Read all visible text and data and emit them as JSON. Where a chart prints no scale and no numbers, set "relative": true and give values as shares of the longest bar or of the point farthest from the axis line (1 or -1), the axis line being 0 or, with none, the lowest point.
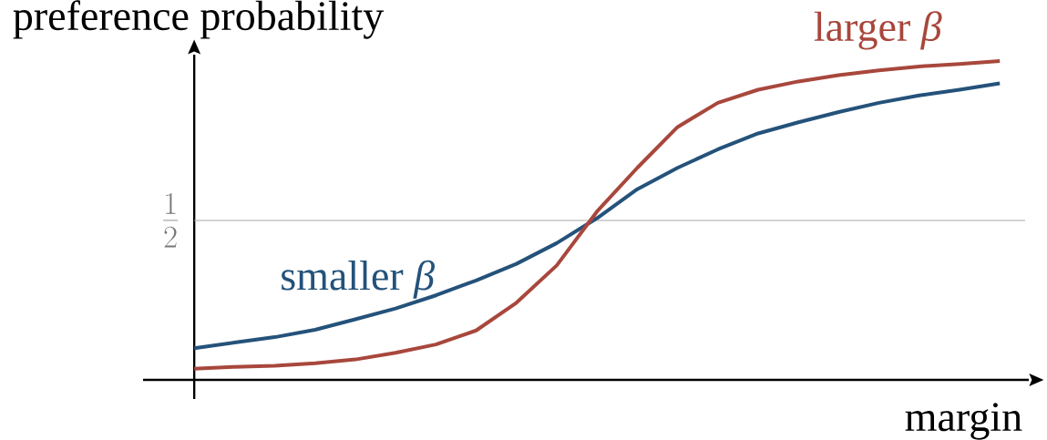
{
  "chart_data": {
    "type": "line",
    "relative": true,
    "xlabel": "margin",
    "ylabel": "preference probability",
    "categories": [
      null,
      null,
      null,
      null,
      null,
      null,
      null,
      null,
      null,
      null,
      null,
      null,
      null,
      null,
      null,
      null,
      null,
      null,
      null,
      null,
      null
    ],
    "series": [
      {
        "name": "smaller *β*",
        "color": "#24527a",
        "values": [
          0.099,
          0.117,
          0.134,
          0.157,
          0.19,
          0.224,
          0.265,
          0.312,
          0.364,
          0.429,
          0.507,
          0.598,
          0.665,
          0.723,
          0.773,
          0.808,
          0.84,
          0.869,
          0.892,
          0.91,
          0.93
        ]
      },
      {
        "name": "larger *β*",
        "color": "#a8473c",
        "values": [
          0.035,
          0.041,
          0.044,
          0.052,
          0.064,
          0.085,
          0.111,
          0.155,
          0.242,
          0.359,
          0.528,
          0.665,
          0.793,
          0.869,
          0.91,
          0.936,
          0.956,
          0.971,
          0.983,
          0.991,
          1.0
        ]
      }
    ],
    "ref_lines": [
      {
        "axis": "y",
        "value": 0.5,
        "label": "\\frac{1}{2}",
        "color": "#aaaaaa"
      }
    ],
    "grid": false,
    "marker": "none",
    "line_style": "solid"
  }
}
